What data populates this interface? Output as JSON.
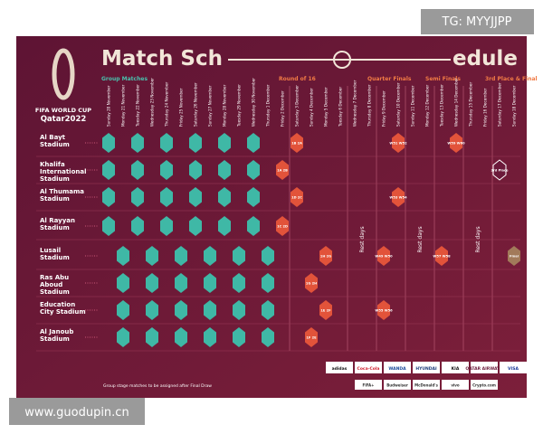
{
  "watermark_top": "TG: MYYJJPP",
  "watermark_bottom": "www.guodupin.cn",
  "logo": {
    "line1": "FIFA WORLD CUP",
    "line2": "Qatar2022"
  },
  "title": {
    "left": "Match Sch",
    "right": "edule"
  },
  "stages": [
    "Group Matches",
    "Round of 16",
    "Quarter Finals",
    "Semi Finals",
    "3rd Place & Final"
  ],
  "dates": [
    "Sunday 20 November",
    "Monday 21 November",
    "Tuesday 22 November",
    "Wednesday 23 November",
    "Thursday 24 November",
    "Friday 25 November",
    "Saturday 26 November",
    "Sunday 27 November",
    "Monday 28 November",
    "Tuesday 29 November",
    "Wednesday 30 November",
    "Thursday 1 December",
    "Friday 2 December",
    "Saturday 3 December",
    "Sunday 4 December",
    "Monday 5 December",
    "Tuesday 6 December",
    "Wednesday 7 December",
    "Thursday 8 December",
    "Friday 9 December",
    "Saturday 10 December",
    "Sunday 11 December",
    "Monday 12 December",
    "Tuesday 13 December",
    "Wednesday 14 December",
    "Thursday 15 December",
    "Friday 16 December",
    "Saturday 17 December",
    "Sunday 18 December"
  ],
  "stadiums": [
    "Al Bayt Stadium",
    "Khalifa International Stadium",
    "Al Thumama Stadium",
    "Al Rayyan Stadium",
    "Lusail Stadium",
    "Ras Abu Aboud Stadium",
    "Education City Stadium",
    "Al Janoub Stadium"
  ],
  "rest_label": "Rest days",
  "knockout": [
    "1B 2A",
    "1A 2B",
    "1D 2C",
    "1C 2D",
    "1H 2G",
    "1G 2H",
    "1E 2F",
    "1F 2E",
    "W51 W52",
    "W53 W54",
    "W49 W50",
    "W55 W56",
    "W59 W60",
    "W57 W58",
    "3rd Place",
    "Final"
  ],
  "footnote": "Group stage matches to be assigned after Final Draw",
  "sponsors": [
    "adidas",
    "Coca-Cola",
    "WANDA",
    "HYUNDAI",
    "KIA",
    "QATAR AIRWAYS",
    "VISA"
  ],
  "sponsors_2": [
    "FIFA+",
    "Budweiser",
    "McDonald's",
    "vivo",
    "Crypto.com"
  ]
}
